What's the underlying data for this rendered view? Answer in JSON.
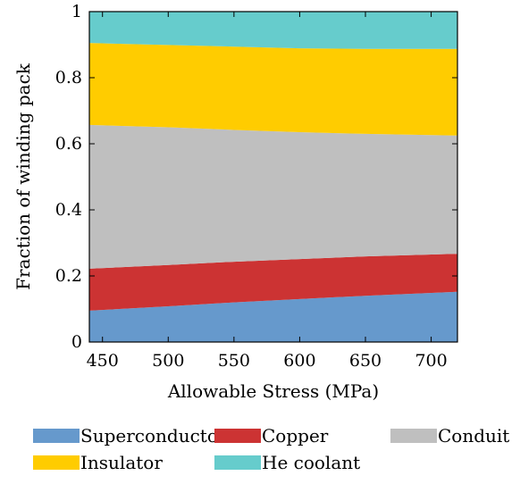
{
  "chart_data": {
    "type": "area",
    "stacked": true,
    "normalized": true,
    "xlabel": "Allowable Stress (MPa)",
    "ylabel": "Fraction of winding pack",
    "xlim": [
      440,
      720
    ],
    "ylim": [
      0,
      1
    ],
    "x_ticks": [
      450,
      500,
      550,
      600,
      650,
      700
    ],
    "y_ticks": [
      0,
      0.2,
      0.4,
      0.6,
      0.8,
      1
    ],
    "y_tick_labels": [
      "0",
      "0.2",
      "0.4",
      "0.6",
      "0.8",
      "1"
    ],
    "grid": false,
    "legend_position": "bottom",
    "x": [
      440,
      500,
      550,
      600,
      650,
      720
    ],
    "series": [
      {
        "name": "Superconductor",
        "color": "#6699cc",
        "values": [
          0.095,
          0.108,
          0.12,
          0.13,
          0.14,
          0.152
        ]
      },
      {
        "name": "Copper",
        "color": "#cc3333",
        "values": [
          0.127,
          0.125,
          0.123,
          0.121,
          0.119,
          0.115
        ]
      },
      {
        "name": "Conduit",
        "color": "#bfbfbf",
        "values": [
          0.435,
          0.417,
          0.399,
          0.384,
          0.371,
          0.358
        ]
      },
      {
        "name": "Insulator",
        "color": "#ffcc00",
        "values": [
          0.248,
          0.249,
          0.252,
          0.254,
          0.257,
          0.262
        ]
      },
      {
        "name": "He coolant",
        "color": "#66cccc",
        "values": [
          0.095,
          0.101,
          0.106,
          0.111,
          0.113,
          0.113
        ]
      }
    ]
  }
}
